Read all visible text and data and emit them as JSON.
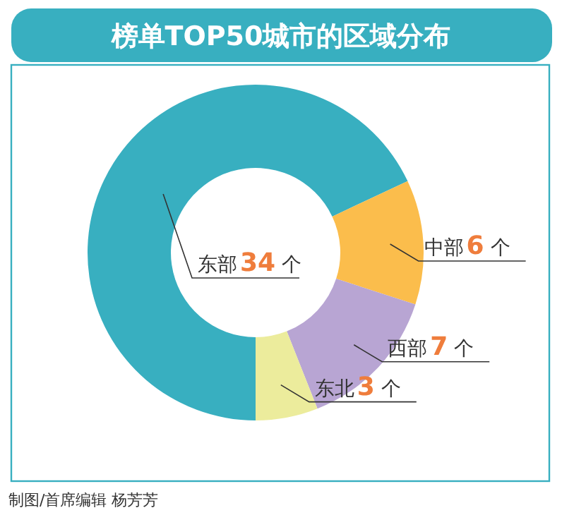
{
  "chart_data": {
    "type": "donut",
    "title": "榜单TOP50城市的区域分布",
    "categories": [
      "东部",
      "中部",
      "西部",
      "东北"
    ],
    "values": [
      34,
      6,
      7,
      3
    ],
    "colors": [
      "#38afc0",
      "#fbbd4c",
      "#b8a5d3",
      "#ecec9c"
    ],
    "value_labels": [
      "34 个",
      "6 个",
      "7 个",
      "3 个"
    ],
    "annotations": [
      "制图/首席编辑  杨芳芳"
    ]
  }
}
